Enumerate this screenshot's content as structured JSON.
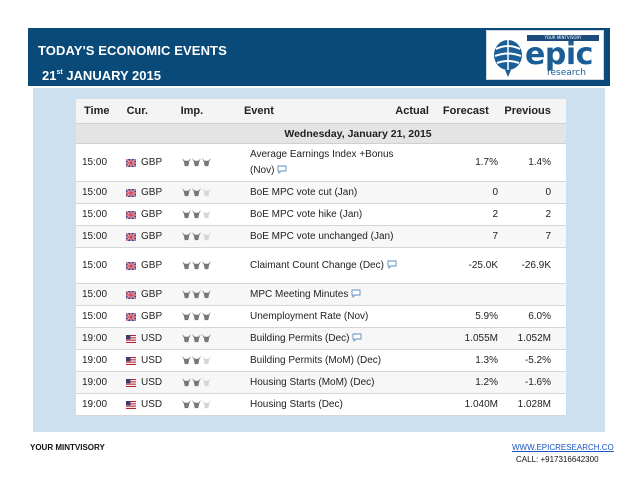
{
  "header": {
    "title": "TODAY'S ECONOMIC EVENTS",
    "date_day": "21",
    "date_suffix": "st",
    "date_rest": " JANUARY 2015"
  },
  "logo": {
    "word": "epic",
    "sub": "research",
    "tag": "YOUR MINTVISORY"
  },
  "calendar": {
    "columns": {
      "time": "Time",
      "cur": "Cur.",
      "imp": "Imp.",
      "event": "Event",
      "actual": "Actual",
      "forecast": "Forecast",
      "previous": "Previous"
    },
    "date_header": "Wednesday, January 21, 2015",
    "rows": [
      {
        "time": "15:00",
        "cur": "GBP",
        "flag": "uk-flag-icon",
        "imp": 3,
        "event": "Average Earnings Index +Bonus (Nov)",
        "actual": "",
        "forecast": "1.7%",
        "previous": "1.4%",
        "comment": true
      },
      {
        "time": "15:00",
        "cur": "GBP",
        "flag": "uk-flag-icon",
        "imp": 2,
        "event": "BoE MPC vote cut (Jan)",
        "actual": "",
        "forecast": "0",
        "previous": "0",
        "comment": false
      },
      {
        "time": "15:00",
        "cur": "GBP",
        "flag": "uk-flag-icon",
        "imp": 2,
        "event": "BoE MPC vote hike (Jan)",
        "actual": "",
        "forecast": "2",
        "previous": "2",
        "comment": false
      },
      {
        "time": "15:00",
        "cur": "GBP",
        "flag": "uk-flag-icon",
        "imp": 2,
        "event": "BoE MPC vote unchanged (Jan)",
        "actual": "",
        "forecast": "7",
        "previous": "7",
        "comment": false
      },
      {
        "time": "15:00",
        "cur": "GBP",
        "flag": "uk-flag-icon",
        "imp": 3,
        "event": "Claimant Count Change (Dec)",
        "actual": "",
        "forecast": "-25.0K",
        "previous": "-26.9K",
        "comment": true
      },
      {
        "time": "15:00",
        "cur": "GBP",
        "flag": "uk-flag-icon",
        "imp": 3,
        "event": "MPC Meeting Minutes",
        "actual": "",
        "forecast": "",
        "previous": "",
        "comment": true
      },
      {
        "time": "15:00",
        "cur": "GBP",
        "flag": "uk-flag-icon",
        "imp": 3,
        "event": "Unemployment Rate (Nov)",
        "actual": "",
        "forecast": "5.9%",
        "previous": "6.0%",
        "comment": false
      },
      {
        "time": "19:00",
        "cur": "USD",
        "flag": "us-flag-icon",
        "imp": 3,
        "event": "Building Permits (Dec)",
        "actual": "",
        "forecast": "1.055M",
        "previous": "1.052M",
        "comment": true
      },
      {
        "time": "19:00",
        "cur": "USD",
        "flag": "us-flag-icon",
        "imp": 2,
        "event": "Building Permits (MoM) (Dec)",
        "actual": "",
        "forecast": "1.3%",
        "previous": "-5.2%",
        "comment": false
      },
      {
        "time": "19:00",
        "cur": "USD",
        "flag": "us-flag-icon",
        "imp": 2,
        "event": "Housing Starts (MoM) (Dec)",
        "actual": "",
        "forecast": "1.2%",
        "previous": "-1.6%",
        "comment": false
      },
      {
        "time": "19:00",
        "cur": "USD",
        "flag": "us-flag-icon",
        "imp": 2,
        "event": "Housing Starts (Dec)",
        "actual": "",
        "forecast": "1.040M",
        "previous": "1.028M",
        "comment": false
      }
    ]
  },
  "footer": {
    "left": "YOUR MINTVISORY",
    "url": "WWW.EPICRESEARCH.CO",
    "call": "CALL: +917316642300"
  },
  "colors": {
    "header_bg": "#0a4a78",
    "panel_bg": "#cce0ef",
    "brand_blue": "#1b5e97"
  }
}
